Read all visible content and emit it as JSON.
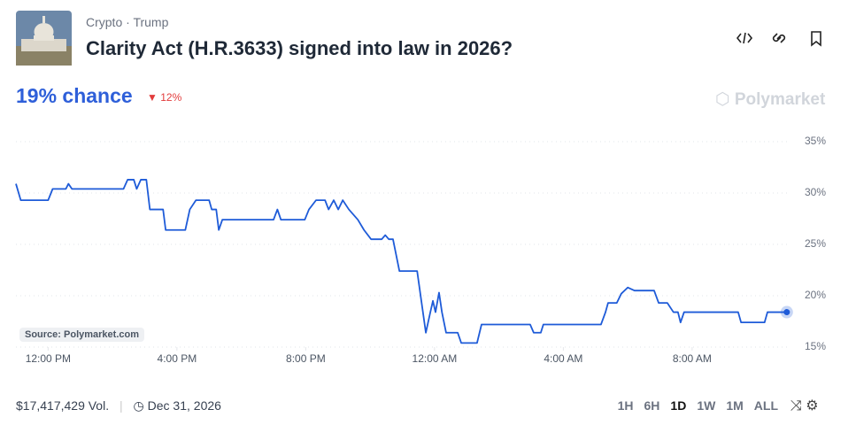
{
  "header": {
    "category": "Crypto",
    "tag": "Trump",
    "title": "Clarity Act (H.R.3633) signed into law in 2026?"
  },
  "odds": {
    "chance": "19% chance",
    "change": "12%"
  },
  "brand": "Polymarket",
  "source": "Source: Polymarket.com",
  "footer": {
    "volume": "$17,417,429 Vol.",
    "end_date": "Dec 31, 2026",
    "ranges": [
      "1H",
      "6H",
      "1D",
      "1W",
      "1M",
      "ALL"
    ]
  },
  "chart_data": {
    "type": "line",
    "x": [
      11.0,
      11.15,
      12.0,
      12.14,
      12.55,
      12.63,
      12.74,
      14.34,
      14.47,
      14.66,
      14.75,
      14.88,
      15.05,
      15.16,
      15.57,
      15.65,
      16.26,
      16.4,
      16.59,
      17.0,
      17.08,
      17.22,
      17.3,
      17.41,
      19.0,
      19.12,
      19.23,
      19.97,
      20.1,
      20.32,
      20.6,
      20.71,
      20.87,
      21.01,
      21.15,
      21.34,
      21.62,
      21.81,
      22.03,
      22.36,
      22.47,
      22.58,
      22.71,
      22.91,
      23.46,
      23.59,
      23.73,
      23.87,
      23.95,
      24.03,
      24.14,
      24.23,
      24.36,
      24.72,
      24.83,
      25.32,
      25.46,
      26.97,
      27.08,
      27.3,
      27.38,
      29.17,
      29.31,
      29.39,
      29.66,
      29.8,
      30.0,
      30.21,
      30.82,
      30.96,
      31.23,
      31.42,
      31.56,
      31.64,
      31.75,
      33.43,
      33.52,
      34.25,
      34.34,
      34.94
    ],
    "series": [
      {
        "color": "#1e5bd8",
        "values": [
          30.9,
          29.3,
          29.3,
          30.4,
          30.4,
          30.9,
          30.4,
          30.4,
          31.3,
          31.3,
          30.4,
          31.3,
          31.3,
          28.4,
          28.4,
          26.4,
          26.4,
          28.4,
          29.3,
          29.3,
          28.4,
          28.4,
          26.4,
          27.4,
          27.4,
          28.4,
          27.4,
          27.4,
          28.4,
          29.3,
          29.3,
          28.4,
          29.3,
          28.4,
          29.3,
          28.4,
          27.4,
          26.4,
          25.5,
          25.5,
          25.9,
          25.5,
          25.5,
          22.4,
          22.4,
          19.5,
          16.4,
          18.4,
          19.5,
          18.4,
          20.3,
          18.4,
          16.4,
          16.4,
          15.4,
          15.4,
          17.2,
          17.2,
          16.4,
          16.4,
          17.2,
          17.2,
          18.4,
          19.3,
          19.3,
          20.2,
          20.8,
          20.5,
          20.5,
          19.3,
          19.3,
          18.4,
          18.4,
          17.4,
          18.4,
          18.4,
          17.4,
          17.4,
          18.4,
          18.4
        ]
      }
    ],
    "xlim": [
      11,
      35
    ],
    "xticks": [
      {
        "value": 12,
        "label": "12:00 PM"
      },
      {
        "value": 16,
        "label": "4:00 PM"
      },
      {
        "value": 20,
        "label": "8:00 PM"
      },
      {
        "value": 24,
        "label": "12:00 AM"
      },
      {
        "value": 28,
        "label": "4:00 AM"
      },
      {
        "value": 32,
        "label": "8:00 AM"
      }
    ],
    "ylim": [
      15,
      35
    ],
    "yticks": [
      {
        "value": 35,
        "label": "35%"
      },
      {
        "value": 30,
        "label": "30%"
      },
      {
        "value": 25,
        "label": "25%"
      },
      {
        "value": 20,
        "label": "20%"
      },
      {
        "value": 15,
        "label": "15%"
      }
    ],
    "grid": true
  }
}
